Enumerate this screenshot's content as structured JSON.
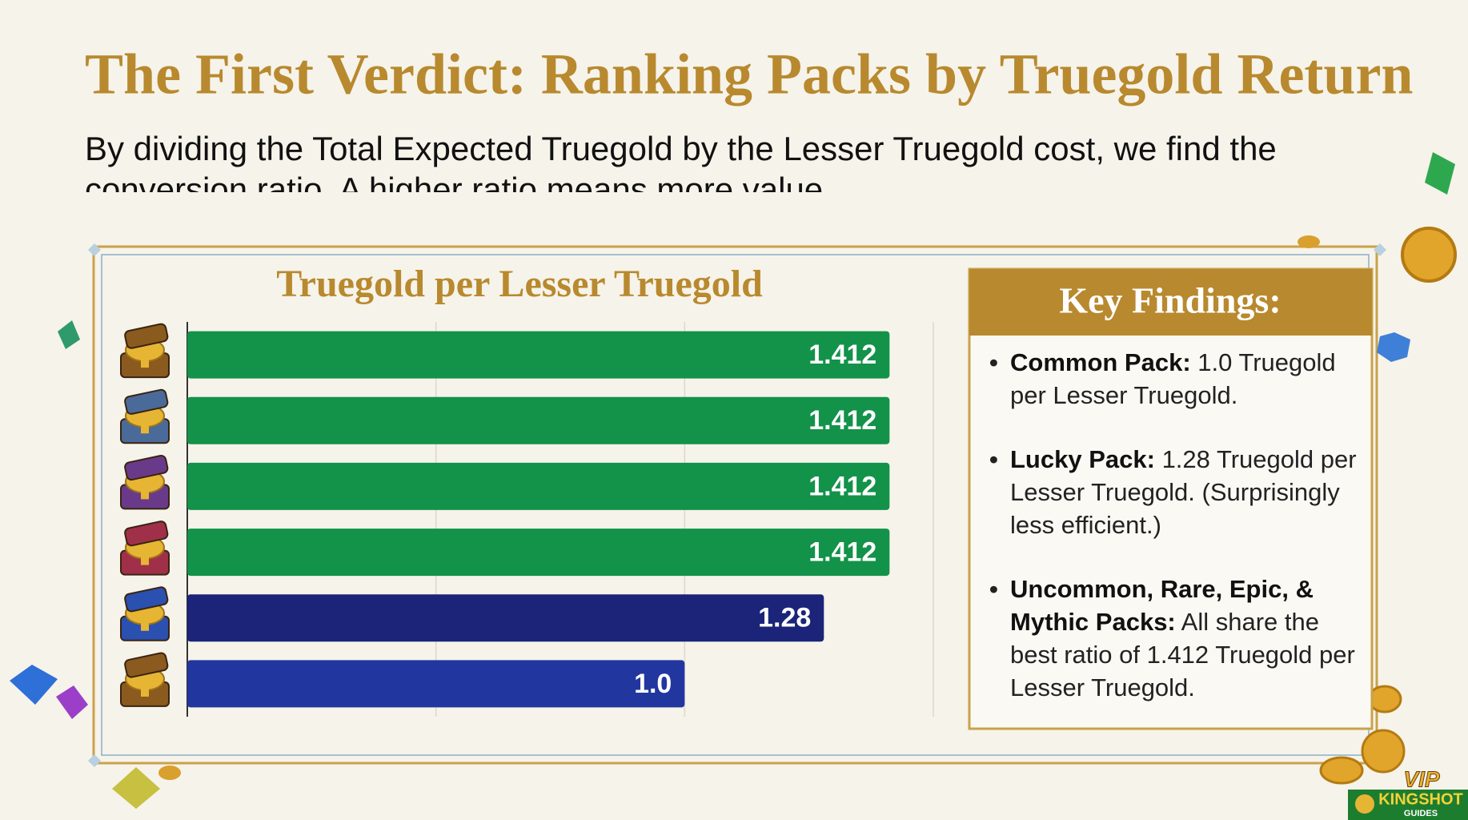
{
  "title": "The First Verdict: Ranking Packs by Truegold Return",
  "subtitle": "By dividing the Total Expected Truegold by the Lesser Truegold cost, we find the conversion ratio. A higher ratio means more value.",
  "chart_data": {
    "type": "hbar",
    "title": "Truegold per Lesser Truegold",
    "categories": [
      null,
      null,
      null,
      null,
      null,
      null
    ],
    "values": [
      1.412,
      1.412,
      1.412,
      1.412,
      1.28,
      1.0
    ],
    "value_labels": [
      "1.412",
      "1.412",
      "1.412",
      "1.412",
      "1.28",
      "1.0"
    ],
    "colors": [
      "#13924a",
      "#13924a",
      "#13924a",
      "#13924a",
      "#1b2478",
      "#2236a0"
    ],
    "xlim": [
      0,
      1.5
    ],
    "xticks": [
      0,
      0.5,
      1,
      1.5
    ],
    "grid": true
  },
  "key_findings": {
    "title": "Key Findings:",
    "items": [
      {
        "label": "Common Pack:",
        "text": "1.0 Truegold per Lesser Truegold."
      },
      {
        "label": "Lucky Pack:",
        "text": "1.28 Truegold per Lesser Truegold. (Surprisingly less efficient.)"
      },
      {
        "label": "Uncommon, Rare, Epic, & Mythic Packs:",
        "text": "All share the best ratio of 1.412 Truegold per Lesser Truegold."
      }
    ]
  },
  "logo": {
    "badge": "VIP",
    "name": "KINGSHOT",
    "sub": "GUIDES"
  }
}
